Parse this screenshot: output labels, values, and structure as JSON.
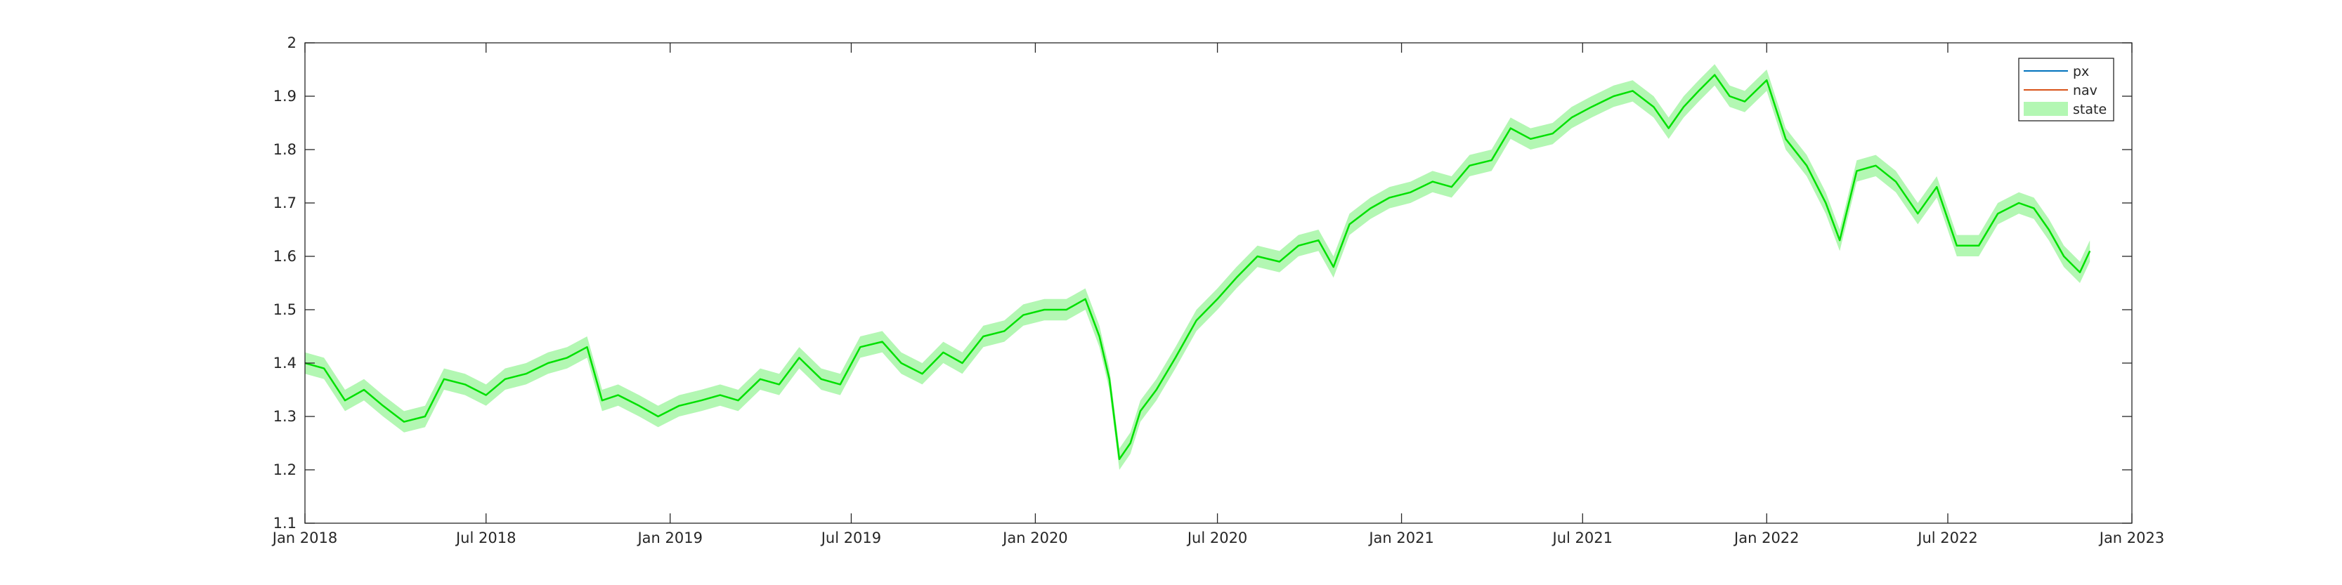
{
  "chart_data": {
    "type": "line",
    "title": "",
    "xlabel": "",
    "ylabel": "",
    "xlim": [
      "2018-01-01",
      "2023-01-01"
    ],
    "ylim": [
      1.1,
      2.0
    ],
    "grid": false,
    "legend_position": "top-right",
    "x_ticks": [
      "Jan 2018",
      "Jul 2018",
      "Jan 2019",
      "Jul 2019",
      "Jan 2020",
      "Jul 2020",
      "Jan 2021",
      "Jul 2021",
      "Jan 2022",
      "Jul 2022",
      "Jan 2023"
    ],
    "x_tick_dates": [
      "2018-01-01",
      "2018-07-01",
      "2019-01-01",
      "2019-07-01",
      "2020-01-01",
      "2020-07-01",
      "2021-01-01",
      "2021-07-01",
      "2022-01-01",
      "2022-07-01",
      "2023-01-01"
    ],
    "y_ticks": [
      "1.1",
      "1.2",
      "1.3",
      "1.4",
      "1.5",
      "1.6",
      "1.7",
      "1.8",
      "1.9",
      "2"
    ],
    "y_tick_values": [
      1.1,
      1.2,
      1.3,
      1.4,
      1.5,
      1.6,
      1.7,
      1.8,
      1.9,
      2.0
    ],
    "legend": [
      "px",
      "nav",
      "state"
    ],
    "band_halfwidth": 0.02,
    "series": [
      {
        "name": "px",
        "color": "#0072BD",
        "dates": [],
        "values": []
      },
      {
        "name": "nav",
        "color": "#D95319",
        "dates": [],
        "values": []
      },
      {
        "name": "state",
        "color": "#00E000",
        "band_color": "#B3F7B3",
        "dates": [
          "2018-01-01",
          "2018-01-20",
          "2018-02-10",
          "2018-03-01",
          "2018-03-20",
          "2018-04-10",
          "2018-05-01",
          "2018-05-20",
          "2018-06-10",
          "2018-07-01",
          "2018-07-20",
          "2018-08-10",
          "2018-09-01",
          "2018-09-20",
          "2018-10-10",
          "2018-10-25",
          "2018-11-10",
          "2018-12-01",
          "2018-12-20",
          "2019-01-10",
          "2019-02-01",
          "2019-02-20",
          "2019-03-10",
          "2019-04-01",
          "2019-04-20",
          "2019-05-10",
          "2019-06-01",
          "2019-06-20",
          "2019-07-10",
          "2019-08-01",
          "2019-08-20",
          "2019-09-10",
          "2019-10-01",
          "2019-10-20",
          "2019-11-10",
          "2019-12-01",
          "2019-12-20",
          "2020-01-10",
          "2020-02-01",
          "2020-02-20",
          "2020-03-05",
          "2020-03-15",
          "2020-03-25",
          "2020-04-05",
          "2020-04-15",
          "2020-05-01",
          "2020-05-20",
          "2020-06-10",
          "2020-07-01",
          "2020-07-20",
          "2020-08-10",
          "2020-09-01",
          "2020-09-20",
          "2020-10-10",
          "2020-10-25",
          "2020-11-10",
          "2020-12-01",
          "2020-12-20",
          "2021-01-10",
          "2021-02-01",
          "2021-02-20",
          "2021-03-10",
          "2021-04-01",
          "2021-04-20",
          "2021-05-10",
          "2021-06-01",
          "2021-06-20",
          "2021-07-10",
          "2021-08-01",
          "2021-08-20",
          "2021-09-10",
          "2021-09-25",
          "2021-10-10",
          "2021-10-25",
          "2021-11-10",
          "2021-11-25",
          "2021-12-10",
          "2022-01-01",
          "2022-01-20",
          "2022-02-10",
          "2022-03-01",
          "2022-03-15",
          "2022-04-01",
          "2022-04-20",
          "2022-05-10",
          "2022-06-01",
          "2022-06-20",
          "2022-07-10",
          "2022-08-01",
          "2022-08-20",
          "2022-09-10",
          "2022-09-25",
          "2022-10-10",
          "2022-10-25",
          "2022-11-10",
          "2022-11-20"
        ],
        "values": [
          1.4,
          1.39,
          1.33,
          1.35,
          1.32,
          1.29,
          1.3,
          1.37,
          1.36,
          1.34,
          1.37,
          1.38,
          1.4,
          1.41,
          1.43,
          1.33,
          1.34,
          1.32,
          1.3,
          1.32,
          1.33,
          1.34,
          1.33,
          1.37,
          1.36,
          1.41,
          1.37,
          1.36,
          1.43,
          1.44,
          1.4,
          1.38,
          1.42,
          1.4,
          1.45,
          1.46,
          1.49,
          1.5,
          1.5,
          1.52,
          1.45,
          1.37,
          1.22,
          1.25,
          1.31,
          1.35,
          1.41,
          1.48,
          1.52,
          1.56,
          1.6,
          1.59,
          1.62,
          1.63,
          1.58,
          1.66,
          1.69,
          1.71,
          1.72,
          1.74,
          1.73,
          1.77,
          1.78,
          1.84,
          1.82,
          1.83,
          1.86,
          1.88,
          1.9,
          1.91,
          1.88,
          1.84,
          1.88,
          1.91,
          1.94,
          1.9,
          1.89,
          1.93,
          1.82,
          1.77,
          1.7,
          1.63,
          1.76,
          1.77,
          1.74,
          1.68,
          1.73,
          1.62,
          1.62,
          1.68,
          1.7,
          1.69,
          1.65,
          1.6,
          1.57,
          1.61
        ]
      }
    ]
  }
}
